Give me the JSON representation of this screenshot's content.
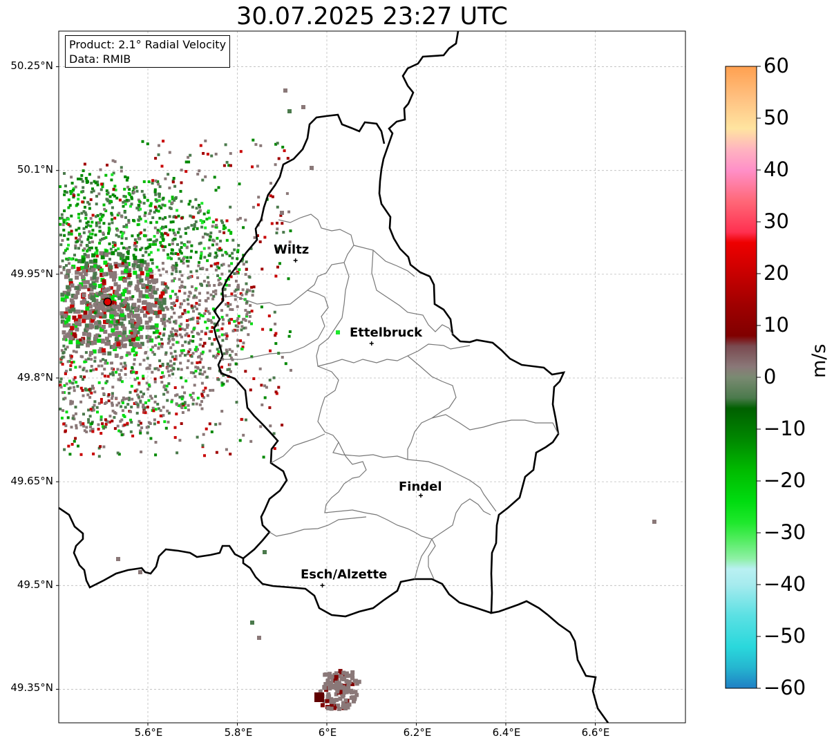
{
  "title": "30.07.2025 23:27 UTC",
  "info_box": {
    "product": "Product: 2.1° Radial Velocity",
    "data": "Data: RMIB"
  },
  "map": {
    "lon_range": [
      5.4,
      6.8
    ],
    "lat_range": [
      49.3,
      50.3
    ],
    "gridlines": true,
    "lat_ticks": [
      "50.25°N",
      "50.1°N",
      "49.95°N",
      "49.8°N",
      "49.65°N",
      "49.5°N",
      "49.35°N"
    ],
    "lon_ticks": [
      "5.6°E",
      "5.8°E",
      "6°E",
      "6.2°E",
      "6.4°E",
      "6.6°E"
    ],
    "cities": [
      {
        "name": "Wiltz",
        "lon": 5.93,
        "lat": 49.97
      },
      {
        "name": "Ettelbruck",
        "lon": 6.1,
        "lat": 49.85
      },
      {
        "name": "Findel",
        "lon": 6.21,
        "lat": 49.63
      },
      {
        "name": "Esch/Alzette",
        "lon": 5.99,
        "lat": 49.5
      }
    ],
    "radar_site": {
      "lon": 5.51,
      "lat": 49.91,
      "color": "#e00000"
    }
  },
  "colorbar": {
    "unit": "m/s",
    "min": -60,
    "max": 60,
    "ticks": [
      "60",
      "50",
      "40",
      "30",
      "20",
      "10",
      "0",
      "−10",
      "−20",
      "−30",
      "−40",
      "−50",
      "−60"
    ],
    "color_stops": [
      {
        "v": -60,
        "c": "#1f7fc4"
      },
      {
        "v": -56,
        "c": "#25b6d0"
      },
      {
        "v": -52,
        "c": "#2ad8dc"
      },
      {
        "v": -46,
        "c": "#5be0e3"
      },
      {
        "v": -40,
        "c": "#a6ebee"
      },
      {
        "v": -37,
        "c": "#b9f0f2"
      },
      {
        "v": -35,
        "c": "#8ef0a5"
      },
      {
        "v": -31,
        "c": "#4dec5a"
      },
      {
        "v": -28,
        "c": "#1ee82c"
      },
      {
        "v": -24,
        "c": "#00dc10"
      },
      {
        "v": -18,
        "c": "#00bb00"
      },
      {
        "v": -12,
        "c": "#008800"
      },
      {
        "v": -6,
        "c": "#006000"
      },
      {
        "v": -4,
        "c": "#4b7a4c"
      },
      {
        "v": 0,
        "c": "#7a8a72"
      },
      {
        "v": 2,
        "c": "#8a7878"
      },
      {
        "v": 6,
        "c": "#7a4a50"
      },
      {
        "v": 8,
        "c": "#800000"
      },
      {
        "v": 14,
        "c": "#a00000"
      },
      {
        "v": 20,
        "c": "#c80000"
      },
      {
        "v": 26,
        "c": "#ee0000"
      },
      {
        "v": 28,
        "c": "#ff3050"
      },
      {
        "v": 34,
        "c": "#ff6878"
      },
      {
        "v": 40,
        "c": "#ff90c8"
      },
      {
        "v": 44,
        "c": "#ffb4c0"
      },
      {
        "v": 48,
        "c": "#ffe4a0"
      },
      {
        "v": 54,
        "c": "#ffc080"
      },
      {
        "v": 60,
        "c": "#ffa050"
      }
    ]
  }
}
